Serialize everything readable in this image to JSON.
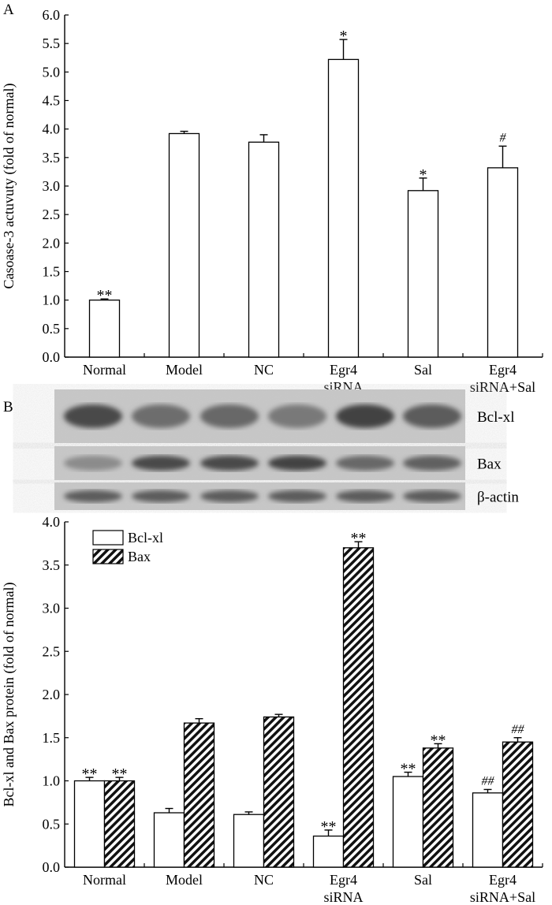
{
  "chart_data": [
    {
      "panel": "A",
      "type": "bar",
      "ylabel": "Casoase-3 actuvuty (fold of normal)",
      "xlabel": "",
      "ylim": [
        0,
        6.0
      ],
      "yticks": [
        "0.0",
        "0.5",
        "1.0",
        "1.5",
        "2.0",
        "2.5",
        "3.0",
        "3.5",
        "4.0",
        "4.5",
        "5.0",
        "5.5",
        "6.0"
      ],
      "categories": [
        [
          "Normal"
        ],
        [
          "Model"
        ],
        [
          "NC"
        ],
        [
          "Egr4",
          "siRNA"
        ],
        [
          "Sal"
        ],
        [
          "Egr4",
          "siRNA+Sal"
        ]
      ],
      "series": [
        {
          "values": [
            1.0,
            3.92,
            3.77,
            5.22,
            2.92,
            3.32
          ],
          "errors": [
            0.02,
            0.04,
            0.13,
            0.35,
            0.22,
            0.38
          ],
          "annotations": [
            "**",
            "",
            "",
            "*",
            "*",
            "#"
          ]
        }
      ]
    },
    {
      "panel": "B",
      "type": "bar",
      "ylabel": "Bcl-xl and Bax protein (fold of normal)",
      "xlabel": "",
      "ylim": [
        0,
        4.0
      ],
      "yticks": [
        "0.0",
        "0.5",
        "1.0",
        "1.5",
        "2.0",
        "2.5",
        "3.0",
        "3.5",
        "4.0"
      ],
      "categories": [
        [
          "Normal"
        ],
        [
          "Model"
        ],
        [
          "NC"
        ],
        [
          "Egr4",
          "siRNA"
        ],
        [
          "Sal"
        ],
        [
          "Egr4",
          "siRNA+Sal"
        ]
      ],
      "legend_position": "top-left",
      "series": [
        {
          "name": "Bcl-xl",
          "pattern": "open",
          "values": [
            1.0,
            0.63,
            0.61,
            0.36,
            1.05,
            0.86
          ],
          "errors": [
            0.04,
            0.05,
            0.03,
            0.07,
            0.05,
            0.04
          ],
          "annotations": [
            "**",
            "",
            "",
            "**",
            "**",
            "##"
          ]
        },
        {
          "name": "Bax",
          "pattern": "hatched",
          "values": [
            1.0,
            1.67,
            1.74,
            3.7,
            1.38,
            1.45
          ],
          "errors": [
            0.04,
            0.05,
            0.03,
            0.07,
            0.05,
            0.05
          ],
          "annotations": [
            "**",
            "",
            "",
            "**",
            "**",
            "##"
          ]
        }
      ]
    }
  ],
  "blot": {
    "labels": [
      "Bcl-xl",
      "Bax",
      "β-actin"
    ],
    "intensities": [
      [
        0.85,
        0.55,
        0.6,
        0.45,
        0.9,
        0.7
      ],
      [
        0.3,
        0.85,
        0.85,
        0.9,
        0.6,
        0.65
      ],
      [
        0.7,
        0.7,
        0.7,
        0.7,
        0.7,
        0.7
      ]
    ]
  },
  "panel_labels": [
    "A",
    "B"
  ]
}
